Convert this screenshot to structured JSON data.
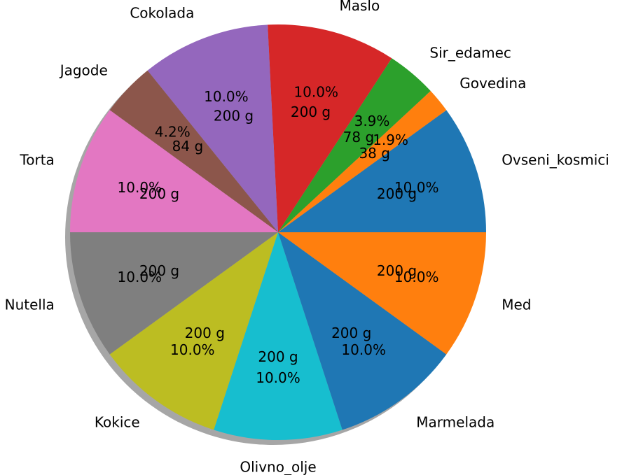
{
  "chart_data": {
    "type": "pie",
    "title": "",
    "unit": "g",
    "shadow": true,
    "start_angle_deg": 0,
    "direction": "counterclockwise",
    "slices": [
      {
        "label": "Ovseni_kosmici",
        "value": 200,
        "percent_label": "10.0%",
        "value_label": "200 g",
        "color": "#1f77b4"
      },
      {
        "label": "Govedina",
        "value": 38,
        "percent_label": "1.9%",
        "value_label": "38 g",
        "color": "#ff7f0e"
      },
      {
        "label": "Sir_edamec",
        "value": 78,
        "percent_label": "3.9%",
        "value_label": "78 g",
        "color": "#2ca02c"
      },
      {
        "label": "Maslo",
        "value": 200,
        "percent_label": "10.0%",
        "value_label": "200 g",
        "color": "#d62728"
      },
      {
        "label": "Cokolada",
        "value": 200,
        "percent_label": "10.0%",
        "value_label": "200 g",
        "color": "#9467bd"
      },
      {
        "label": "Jagode",
        "value": 84,
        "percent_label": "4.2%",
        "value_label": "84 g",
        "color": "#8c564b"
      },
      {
        "label": "Torta",
        "value": 200,
        "percent_label": "10.0%",
        "value_label": "200 g",
        "color": "#e377c2"
      },
      {
        "label": "Nutella",
        "value": 200,
        "percent_label": "10.0%",
        "value_label": "200 g",
        "color": "#7f7f7f"
      },
      {
        "label": "Kokice",
        "value": 200,
        "percent_label": "10.0%",
        "value_label": "200 g",
        "color": "#bcbd22"
      },
      {
        "label": "Olivno_olje",
        "value": 200,
        "percent_label": "10.0%",
        "value_label": "200 g",
        "color": "#17becf"
      },
      {
        "label": "Marmelada",
        "value": 200,
        "percent_label": "10.0%",
        "value_label": "200 g",
        "color": "#1f77b4"
      },
      {
        "label": "Med",
        "value": 200,
        "percent_label": "10.0%",
        "value_label": "200 g",
        "color": "#ff7f0e"
      }
    ]
  }
}
